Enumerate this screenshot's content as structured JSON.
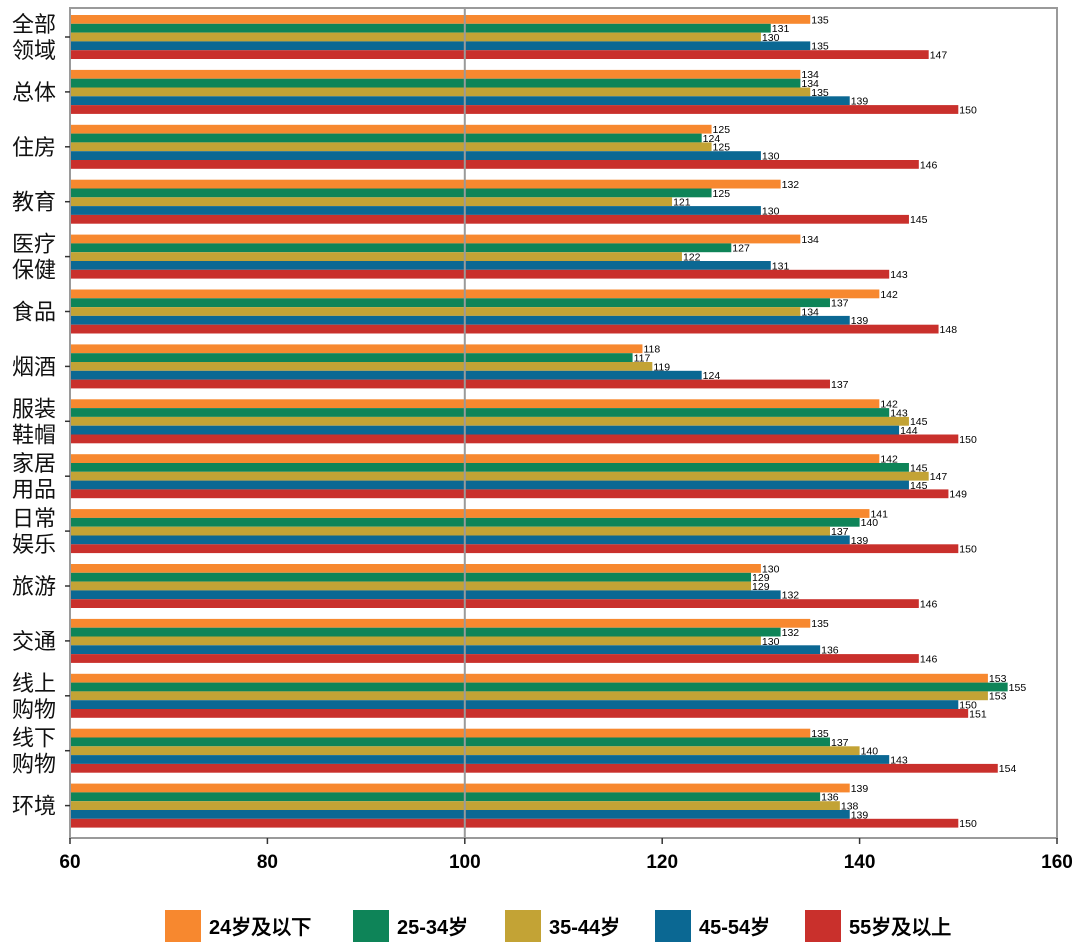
{
  "chart_data": {
    "type": "bar",
    "orientation": "horizontal",
    "categories": [
      "全部\n领域",
      "总体",
      "住房",
      "教育",
      "医疗\n保健",
      "食品",
      "烟酒",
      "服装\n鞋帽",
      "家居\n用品",
      "日常\n娱乐",
      "旅游",
      "交通",
      "线上\n购物",
      "线下\n购物",
      "环境"
    ],
    "series": [
      {
        "name": "24岁及以下",
        "color": "#F7882F",
        "values": [
          135,
          134,
          125,
          132,
          134,
          142,
          118,
          142,
          142,
          141,
          130,
          135,
          153,
          135,
          139
        ]
      },
      {
        "name": "25-34岁",
        "color": "#0E8458",
        "values": [
          131,
          134,
          124,
          125,
          127,
          137,
          117,
          143,
          145,
          140,
          129,
          132,
          155,
          137,
          136
        ]
      },
      {
        "name": "35-44岁",
        "color": "#C3A335",
        "values": [
          130,
          135,
          125,
          121,
          122,
          134,
          119,
          145,
          147,
          137,
          129,
          130,
          153,
          140,
          138
        ]
      },
      {
        "name": "45-54岁",
        "color": "#0B6893",
        "values": [
          135,
          139,
          130,
          130,
          131,
          139,
          124,
          144,
          145,
          139,
          132,
          136,
          150,
          143,
          139
        ]
      },
      {
        "name": "55岁及以上",
        "color": "#C9302C",
        "values": [
          147,
          150,
          146,
          145,
          143,
          148,
          137,
          150,
          149,
          150,
          146,
          146,
          151,
          154,
          150
        ]
      }
    ],
    "xlim": [
      60,
      160
    ],
    "xticks": [
      60,
      80,
      100,
      120,
      140,
      160
    ],
    "reference_line": 100,
    "grid": false,
    "legend_position": "bottom",
    "title": "",
    "xlabel": "",
    "ylabel": ""
  }
}
